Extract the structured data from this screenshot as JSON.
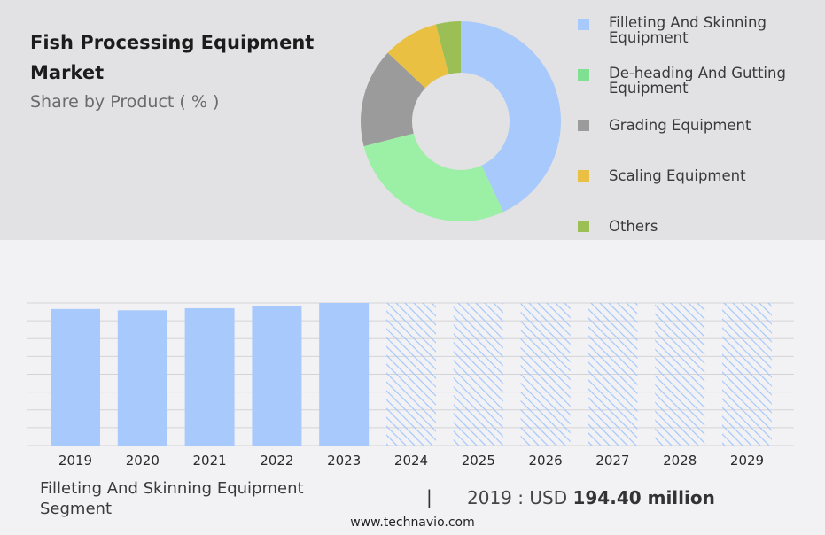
{
  "header": {
    "title": "Fish Processing Equipment Market",
    "subtitle": "Share by Product ( % )"
  },
  "legend": [
    {
      "label": "Filleting And Skinning Equipment",
      "color": "#a8c9fb"
    },
    {
      "label": "De-heading And Gutting Equipment",
      "color": "#7ee090"
    },
    {
      "label": "Grading Equipment",
      "color": "#9b9b9b"
    },
    {
      "label": "Scaling Equipment",
      "color": "#eac042"
    },
    {
      "label": "Others",
      "color": "#9bbf55"
    }
  ],
  "chart_data": [
    {
      "type": "pie",
      "subtype": "donut",
      "title": "Share by Product ( % )",
      "labels": [
        "Filleting And Skinning Equipment",
        "De-heading And Gutting Equipment",
        "Grading Equipment",
        "Scaling Equipment",
        "Others"
      ],
      "values": [
        43,
        28,
        16,
        9,
        4
      ],
      "colors": [
        "#a8c9fb",
        "#9bf0a6",
        "#9b9b9b",
        "#eac042",
        "#9bbf55"
      ]
    },
    {
      "type": "bar",
      "categories": [
        "2019",
        "2020",
        "2021",
        "2022",
        "2023",
        "2024",
        "2025",
        "2026",
        "2027",
        "2028",
        "2029"
      ],
      "values": [
        194.4,
        192.5,
        195.5,
        199.0,
        203.0,
        null,
        null,
        null,
        null,
        null,
        null
      ],
      "forecast_categories": [
        "2024",
        "2025",
        "2026",
        "2027",
        "2028",
        "2029"
      ],
      "grid": true,
      "bar_color": "#a8c9fb"
    }
  ],
  "segment": {
    "name": "Filleting And Skinning Equipment Segment",
    "year": "2019",
    "separator": ":",
    "currency": "USD",
    "value": "194.40 million"
  },
  "footer": {
    "url": "www.technavio.com"
  }
}
